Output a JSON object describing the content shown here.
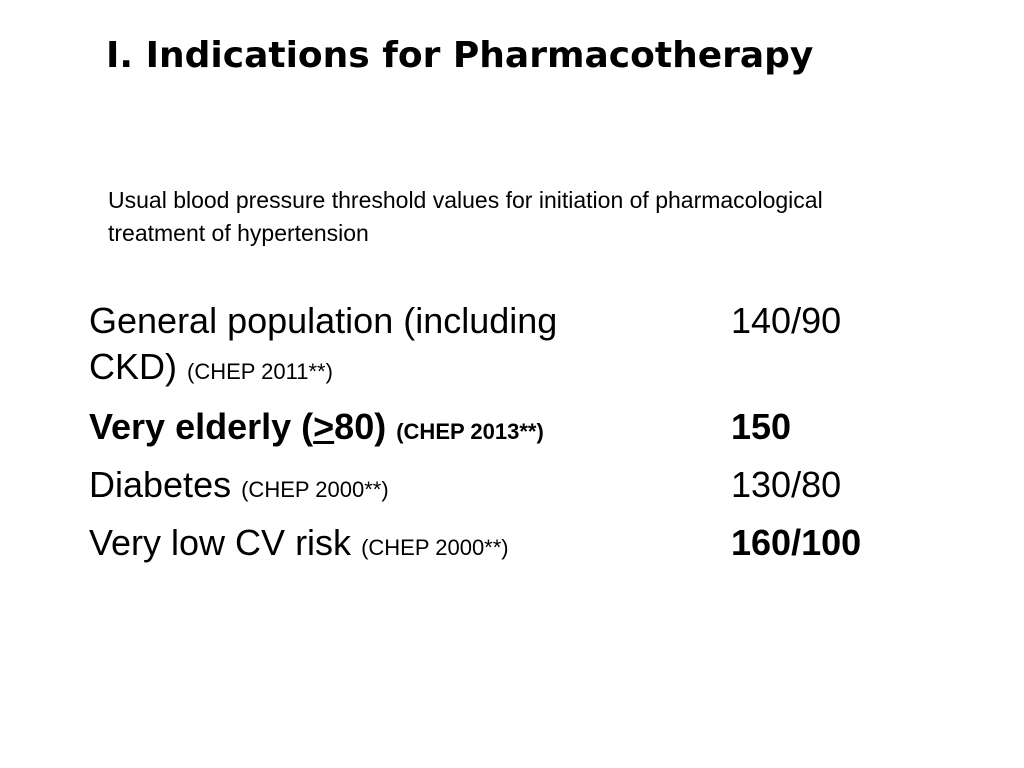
{
  "slide": {
    "title": "I. Indications for Pharmacotherapy",
    "subtitle": "Usual blood pressure threshold values for initiation of pharmacological treatment of hypertension"
  },
  "rows": [
    {
      "label": "General population (including CKD)",
      "ref": "(CHEP 2011**)",
      "value": "140/90"
    },
    {
      "label_pre": "Very elderly (",
      "label_symbol": ">",
      "label_post": "80)",
      "ref": "(CHEP 2013**)",
      "value": "150"
    },
    {
      "label": "Diabetes",
      "ref": "(CHEP 2000**)",
      "value": "130/80"
    },
    {
      "label": "Very low CV risk",
      "ref": "(CHEP 2000**)",
      "value": "160/100"
    }
  ]
}
